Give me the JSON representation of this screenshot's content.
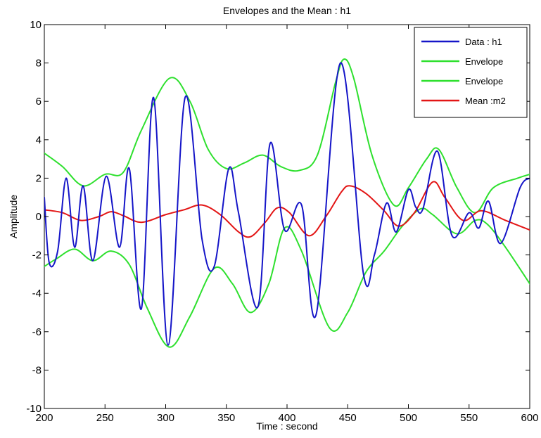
{
  "chart_data": {
    "type": "line",
    "title": "Envelopes and the Mean : h1",
    "xlabel": "Time : second",
    "ylabel": "Amplitude",
    "xlim": [
      200,
      600
    ],
    "ylim": [
      -10,
      10
    ],
    "xticks": [
      "200",
      "250",
      "300",
      "350",
      "400",
      "450",
      "500",
      "550",
      "600"
    ],
    "yticks": [
      "10",
      "8",
      "6",
      "4",
      "2",
      "0",
      "-2",
      "-4",
      "-6",
      "-8",
      "-10"
    ],
    "grid": false,
    "legend_position": "top-right",
    "series": [
      {
        "name": "Data : h1",
        "color": "#1515c8",
        "x": [
          200,
          204,
          211,
          218,
          225,
          232,
          240,
          251,
          262,
          270,
          280,
          290,
          302,
          316,
          330,
          340,
          352,
          360,
          376,
          386,
          398,
          412,
          424,
          444,
          463,
          472,
          482,
          490,
          500,
          506,
          512,
          524,
          536,
          550,
          558,
          566,
          576,
          592,
          600
        ],
        "y": [
          1.0,
          -2.4,
          -1.8,
          2.0,
          -1.6,
          1.6,
          -2.3,
          2.1,
          -1.6,
          2.5,
          -4.8,
          6.2,
          -6.7,
          6.2,
          -1.2,
          -2.6,
          2.5,
          0.2,
          -4.7,
          3.8,
          -0.7,
          0.6,
          -5.1,
          8.0,
          -3.0,
          -2.0,
          0.7,
          -0.8,
          1.4,
          0.5,
          0.4,
          3.4,
          -1.0,
          0.2,
          -0.6,
          0.8,
          -1.4,
          1.5,
          2.0
        ]
      },
      {
        "name": "Envelope",
        "color": "#2ee02e",
        "x": [
          200,
          215,
          232,
          250,
          265,
          280,
          303,
          320,
          335,
          350,
          365,
          380,
          395,
          410,
          425,
          440,
          447,
          455,
          470,
          488,
          500,
          515,
          525,
          540,
          555,
          570,
          590,
          600
        ],
        "y": [
          3.3,
          2.6,
          1.6,
          2.2,
          2.3,
          4.5,
          7.2,
          6.0,
          3.5,
          2.5,
          2.8,
          3.2,
          2.6,
          2.4,
          3.2,
          7.0,
          8.2,
          7.2,
          3.2,
          0.6,
          1.5,
          3.0,
          3.5,
          1.5,
          0.2,
          1.5,
          2.0,
          2.2
        ]
      },
      {
        "name": "Envelope",
        "color": "#2ee02e",
        "x": [
          200,
          210,
          225,
          240,
          255,
          270,
          285,
          303,
          320,
          340,
          355,
          370,
          385,
          398,
          412,
          435,
          450,
          465,
          480,
          495,
          510,
          520,
          540,
          555,
          565,
          580,
          600
        ],
        "y": [
          -2.6,
          -2.2,
          -1.7,
          -2.3,
          -1.8,
          -2.5,
          -4.8,
          -6.8,
          -5.2,
          -2.7,
          -3.5,
          -5.0,
          -3.5,
          -0.6,
          -1.8,
          -5.8,
          -5.0,
          -2.9,
          -1.8,
          -0.5,
          0.4,
          0.1,
          -0.9,
          -0.2,
          -0.4,
          -1.6,
          -3.5
        ]
      },
      {
        "name": "Mean :m2",
        "color": "#e31515",
        "x": [
          200,
          215,
          230,
          245,
          255,
          265,
          280,
          300,
          315,
          330,
          345,
          360,
          370,
          382,
          392,
          402,
          418,
          432,
          445,
          452,
          465,
          480,
          492,
          505,
          520,
          530,
          545,
          560,
          580,
          600
        ],
        "y": [
          0.35,
          0.2,
          -0.2,
          0.0,
          0.25,
          0.05,
          -0.3,
          0.1,
          0.35,
          0.6,
          0.1,
          -0.8,
          -1.05,
          -0.3,
          0.45,
          0.2,
          -1.0,
          0.0,
          1.3,
          1.6,
          1.2,
          0.3,
          -0.5,
          0.2,
          1.8,
          1.0,
          -0.2,
          0.3,
          -0.2,
          -0.7
        ]
      }
    ]
  }
}
